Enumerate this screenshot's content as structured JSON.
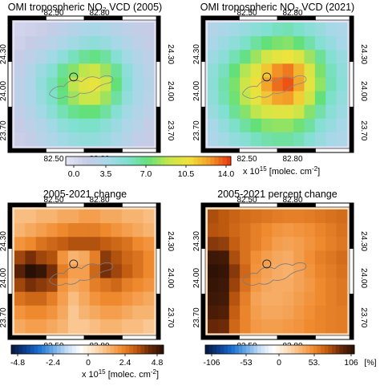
{
  "chart_data": [
    {
      "type": "heatmap",
      "title": "OMI tropospheric NO₂ VCD (2005)",
      "x_ticks": [
        "82.50",
        "82.80"
      ],
      "y_ticks": [
        "24.30",
        "24.00",
        "23.70"
      ],
      "xlim": [
        82.2,
        83.4
      ],
      "ylim": [
        23.6,
        24.4
      ],
      "value_range": [
        0,
        14
      ],
      "rows": [
        [
          1.2,
          1.4,
          1.6,
          2.0,
          2.4,
          2.8,
          3.2,
          3.4,
          3.2,
          2.8,
          2.4,
          2.0,
          1.8
        ],
        [
          1.4,
          1.8,
          2.2,
          2.6,
          3.2,
          3.8,
          4.2,
          4.6,
          4.2,
          3.6,
          3.0,
          2.4,
          2.0
        ],
        [
          1.8,
          2.4,
          3.0,
          3.8,
          4.6,
          5.6,
          6.4,
          6.8,
          6.2,
          5.0,
          3.8,
          3.0,
          2.4
        ],
        [
          2.2,
          3.0,
          4.0,
          5.0,
          6.4,
          7.6,
          8.6,
          9.0,
          8.0,
          6.4,
          4.6,
          3.4,
          2.6
        ],
        [
          2.4,
          3.2,
          4.4,
          5.6,
          7.0,
          8.6,
          9.8,
          10.2,
          9.0,
          7.0,
          5.0,
          3.6,
          2.8
        ],
        [
          2.4,
          3.2,
          4.2,
          5.4,
          6.8,
          8.0,
          8.8,
          9.0,
          8.0,
          6.2,
          4.4,
          3.4,
          2.6
        ],
        [
          2.2,
          2.8,
          3.8,
          4.8,
          5.8,
          6.6,
          7.0,
          7.0,
          6.2,
          5.0,
          3.8,
          3.0,
          2.4
        ],
        [
          1.8,
          2.4,
          3.0,
          3.8,
          4.6,
          5.2,
          5.4,
          5.4,
          4.8,
          4.0,
          3.2,
          2.6,
          2.0
        ],
        [
          1.6,
          2.0,
          2.6,
          3.2,
          3.8,
          4.2,
          4.4,
          4.4,
          4.0,
          3.4,
          2.8,
          2.2,
          1.8
        ]
      ]
    },
    {
      "type": "heatmap",
      "title": "OMI tropospheric NO₂ VCD (2021)",
      "x_ticks": [
        "82.50",
        "82.80"
      ],
      "y_ticks": [
        "24.30",
        "24.00",
        "23.70"
      ],
      "xlim": [
        82.2,
        83.4
      ],
      "ylim": [
        23.6,
        24.4
      ],
      "value_range": [
        0,
        14
      ],
      "rows": [
        [
          3.0,
          3.4,
          3.8,
          4.2,
          4.8,
          5.2,
          5.6,
          5.8,
          5.4,
          4.8,
          4.2,
          3.6,
          3.2
        ],
        [
          3.4,
          4.0,
          4.6,
          5.4,
          6.2,
          7.0,
          7.4,
          7.6,
          7.0,
          6.0,
          5.0,
          4.2,
          3.6
        ],
        [
          4.0,
          4.8,
          5.8,
          6.8,
          8.0,
          9.2,
          10.0,
          10.4,
          9.6,
          8.0,
          6.4,
          5.0,
          4.2
        ],
        [
          4.6,
          5.6,
          7.0,
          8.4,
          9.8,
          11.2,
          12.4,
          12.8,
          11.6,
          9.6,
          7.4,
          5.6,
          4.6
        ],
        [
          4.8,
          6.0,
          7.4,
          9.0,
          10.6,
          12.0,
          13.0,
          13.4,
          12.0,
          10.0,
          7.8,
          5.8,
          4.8
        ],
        [
          4.6,
          5.8,
          7.2,
          8.6,
          10.0,
          11.2,
          12.0,
          12.2,
          11.0,
          9.0,
          7.0,
          5.4,
          4.4
        ],
        [
          4.2,
          5.2,
          6.4,
          7.6,
          8.6,
          9.4,
          9.8,
          9.8,
          9.0,
          7.6,
          6.0,
          4.8,
          4.0
        ],
        [
          3.6,
          4.4,
          5.4,
          6.2,
          7.0,
          7.6,
          7.8,
          7.8,
          7.2,
          6.2,
          5.0,
          4.2,
          3.6
        ],
        [
          3.2,
          3.8,
          4.4,
          5.0,
          5.6,
          6.0,
          6.2,
          6.2,
          5.8,
          5.0,
          4.2,
          3.6,
          3.2
        ]
      ]
    },
    {
      "type": "heatmap",
      "title": "2005-2021 change",
      "x_ticks": [
        "82.50",
        "82.80"
      ],
      "y_ticks": [
        "24.30",
        "24.00",
        "23.70"
      ],
      "xlim": [
        82.2,
        83.4
      ],
      "ylim": [
        23.6,
        24.4
      ],
      "value_range": [
        -4.8,
        4.8
      ],
      "rows": [
        [
          1.2,
          1.2,
          1.4,
          1.4,
          1.6,
          1.6,
          1.8,
          1.8,
          1.6,
          1.6,
          1.4,
          1.4,
          1.2
        ],
        [
          1.4,
          1.6,
          1.8,
          2.0,
          2.2,
          2.4,
          2.4,
          2.4,
          2.2,
          2.0,
          1.8,
          1.6,
          1.4
        ],
        [
          2.0,
          2.2,
          2.6,
          2.8,
          3.0,
          3.2,
          3.2,
          3.2,
          3.0,
          2.8,
          2.6,
          2.2,
          2.0
        ],
        [
          3.4,
          3.8,
          3.4,
          3.2,
          2.0,
          1.4,
          1.6,
          2.4,
          3.6,
          3.2,
          2.8,
          2.6,
          2.2
        ],
        [
          4.2,
          4.8,
          4.6,
          3.8,
          2.4,
          1.8,
          1.8,
          2.8,
          3.8,
          3.4,
          3.0,
          2.6,
          2.2
        ],
        [
          3.4,
          3.8,
          3.6,
          3.4,
          2.0,
          1.6,
          1.8,
          2.4,
          2.6,
          2.8,
          2.4,
          2.2,
          2.0
        ],
        [
          2.6,
          2.8,
          2.8,
          2.4,
          1.8,
          1.2,
          1.6,
          2.0,
          2.2,
          2.2,
          2.0,
          1.8,
          1.6
        ],
        [
          2.0,
          2.2,
          2.2,
          2.0,
          1.6,
          1.0,
          1.4,
          1.6,
          1.8,
          1.8,
          1.6,
          1.4,
          1.4
        ],
        [
          1.6,
          1.8,
          1.8,
          1.6,
          1.4,
          1.0,
          1.0,
          1.2,
          1.4,
          1.4,
          1.2,
          1.2,
          1.0
        ]
      ]
    },
    {
      "type": "heatmap",
      "title": "2005-2021 percent change",
      "x_ticks": [
        "82.50",
        "82.80"
      ],
      "y_ticks": [
        "24.30",
        "24.00",
        "23.70"
      ],
      "xlim": [
        82.2,
        83.4
      ],
      "ylim": [
        23.6,
        24.4
      ],
      "value_range": [
        -106,
        106
      ],
      "rows": [
        [
          72,
          68,
          64,
          60,
          58,
          56,
          54,
          52,
          52,
          54,
          56,
          58,
          60
        ],
        [
          70,
          68,
          62,
          58,
          52,
          48,
          44,
          42,
          44,
          46,
          50,
          54,
          58
        ],
        [
          80,
          78,
          66,
          58,
          52,
          46,
          40,
          38,
          40,
          44,
          48,
          52,
          56
        ],
        [
          100,
          98,
          72,
          58,
          46,
          40,
          36,
          34,
          40,
          46,
          52,
          56,
          60
        ],
        [
          104,
          102,
          80,
          62,
          44,
          38,
          34,
          32,
          38,
          44,
          50,
          54,
          58
        ],
        [
          102,
          100,
          76,
          58,
          42,
          36,
          34,
          34,
          38,
          42,
          48,
          52,
          56
        ],
        [
          100,
          98,
          70,
          52,
          38,
          34,
          34,
          36,
          40,
          44,
          48,
          52,
          56
        ],
        [
          96,
          94,
          66,
          50,
          40,
          36,
          36,
          38,
          42,
          46,
          50,
          52,
          54
        ],
        [
          88,
          86,
          62,
          50,
          42,
          40,
          40,
          42,
          44,
          48,
          50,
          52,
          54
        ]
      ]
    }
  ],
  "colorbars": [
    {
      "ticks": [
        "0.0",
        "3.5",
        "7.0",
        "10.5",
        "14.0"
      ],
      "unit_label_prefix": "x 10",
      "unit_label_exp": "15",
      "unit_label_suffix": " [molec. cm",
      "unit_label_exp2": "-2",
      "unit_label_end": "]"
    },
    {
      "ticks": [
        "-4.8",
        "-2.4",
        "0",
        "2.4",
        "4.8"
      ],
      "unit_label_prefix": "x 10",
      "unit_label_exp": "15",
      "unit_label_suffix": " [molec. cm",
      "unit_label_exp2": "-2",
      "unit_label_end": "]"
    },
    {
      "ticks": [
        "-106",
        "-53",
        "0",
        "53.",
        "106"
      ],
      "unit_label": "[%]"
    }
  ],
  "colors": {
    "sequential": [
      "#e4e4f4",
      "#c8cce6",
      "#a8d8e8",
      "#7fe0d0",
      "#63e07a",
      "#c8e64a",
      "#f0e23c",
      "#f29a28",
      "#e8300c"
    ],
    "diverging": [
      "#08183a",
      "#0b3d8c",
      "#1a6fd0",
      "#6aa8e4",
      "#c4dcf4",
      "#ffffff",
      "#fde0c0",
      "#f8b878",
      "#f08a2e",
      "#c05a10",
      "#6a2808",
      "#281006"
    ]
  }
}
